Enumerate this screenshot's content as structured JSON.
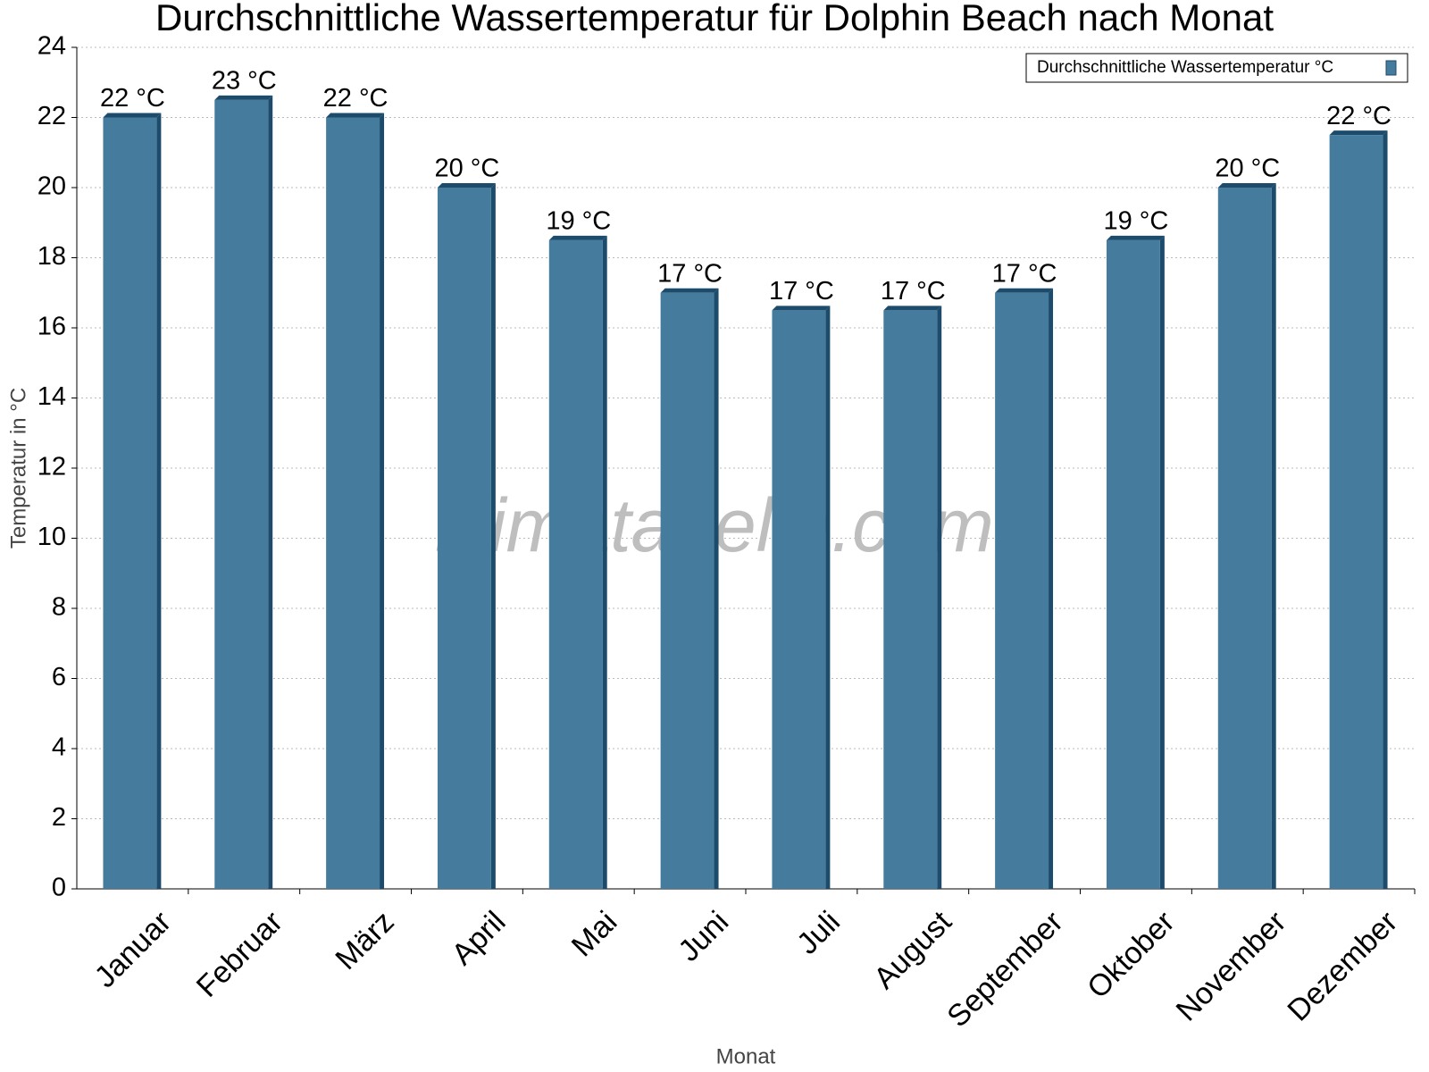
{
  "chart_data": {
    "type": "bar",
    "title": "Durchschnittliche Wassertemperatur für Dolphin Beach nach Monat",
    "x_label": "Monat",
    "y_label": "Temperatur in °C",
    "watermark": "klimatabelle.com",
    "categories": [
      "Januar",
      "Februar",
      "März",
      "April",
      "Mai",
      "Juni",
      "Juli",
      "August",
      "September",
      "Oktober",
      "November",
      "Dezember"
    ],
    "series": [
      {
        "name": "Durchschnittliche Wassertemperatur °C",
        "color": "#457b9d",
        "values": [
          22,
          22.5,
          22,
          20,
          18.5,
          17,
          16.5,
          16.5,
          17,
          18.5,
          20,
          21.5
        ],
        "value_labels": [
          "22 °C",
          "23 °C",
          "22 °C",
          "20 °C",
          "19 °C",
          "17 °C",
          "17 °C",
          "17 °C",
          "17 °C",
          "19 °C",
          "20 °C",
          "22 °C"
        ]
      }
    ],
    "ylim": [
      0,
      24
    ],
    "yticks": [
      0,
      2,
      4,
      6,
      8,
      10,
      12,
      14,
      16,
      18,
      20,
      22,
      24
    ],
    "grid": true,
    "legend": "upper-right"
  }
}
